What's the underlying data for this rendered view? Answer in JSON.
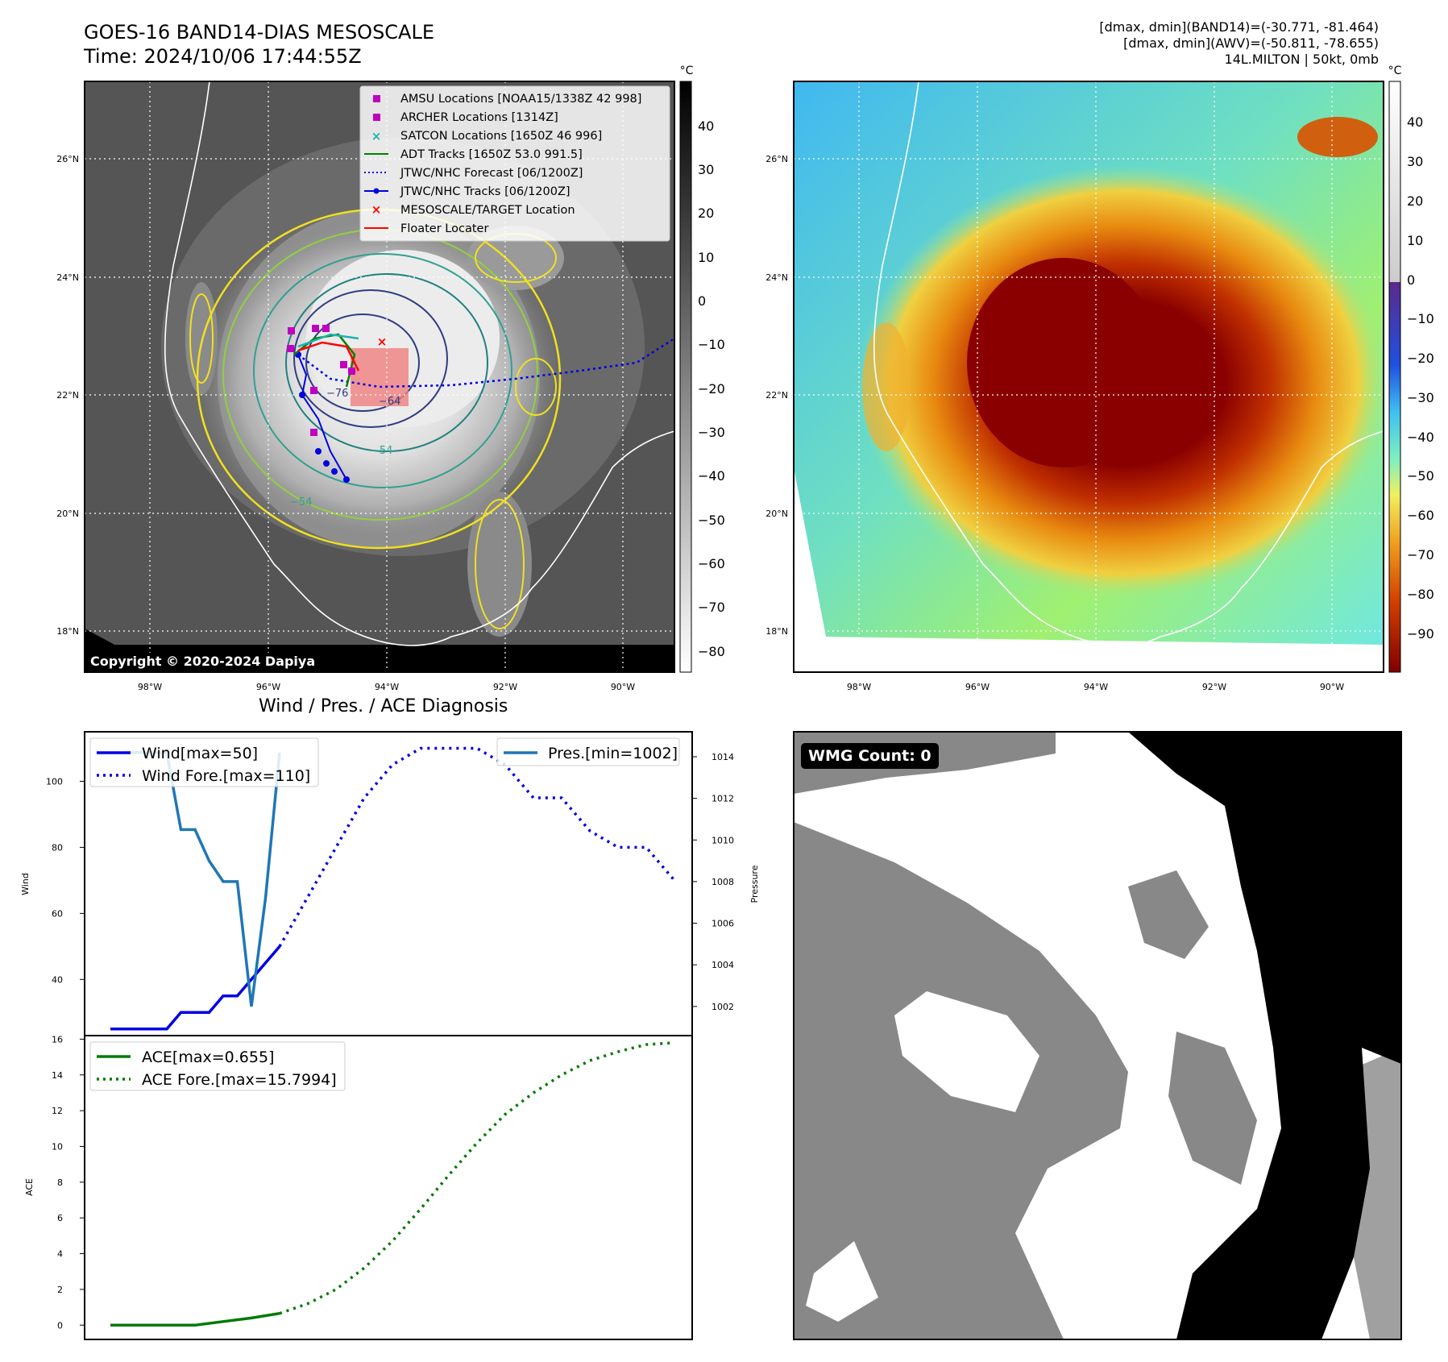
{
  "header": {
    "title_line1": "GOES-16 BAND14-DIAS MESOSCALE",
    "title_line2": "Time: 2024/10/06 17:44:55Z",
    "info_line1": "[dmax, dmin](BAND14)=(-30.771, -81.464)",
    "info_line2": "[dmax, dmin](AWV)=(-50.811, -78.655)",
    "info_line3": "14L.MILTON | 50kt, 0mb"
  },
  "maps": {
    "lat_labels": [
      "26°N",
      "24°N",
      "22°N",
      "20°N",
      "18°N"
    ],
    "lon_labels": [
      "98°W",
      "96°W",
      "94°W",
      "92°W",
      "90°W"
    ],
    "copyright": "Copyright © 2020-2024 Dapiya",
    "left_colorbar": {
      "unit": "°C",
      "ticks": [
        "40",
        "30",
        "20",
        "10",
        "0",
        "−10",
        "−20",
        "−30",
        "−40",
        "−50",
        "−60",
        "−70",
        "−80"
      ]
    },
    "right_colorbar": {
      "unit": "°C",
      "ticks": [
        "40",
        "30",
        "20",
        "10",
        "0",
        "−10",
        "−20",
        "−30",
        "−40",
        "−50",
        "−60",
        "−70",
        "−80",
        "−90"
      ]
    },
    "contour_labels": [
      "−76",
      "−64",
      "−54",
      "−54"
    ],
    "legend": [
      {
        "label": "AMSU Locations [NOAA15/1338Z 42 998]",
        "color": "#c000c0",
        "marker": "square"
      },
      {
        "label": "ARCHER Locations [1314Z]",
        "color": "#c000c0",
        "marker": "square"
      },
      {
        "label": "SATCON Locations [1650Z 46 996]",
        "color": "#20b0b0",
        "marker": "x"
      },
      {
        "label": "ADT Tracks [1650Z 53.0 991.5]",
        "color": "#008000",
        "marker": "line"
      },
      {
        "label": "JTWC/NHC Forecast [06/1200Z]",
        "color": "#0000e0",
        "marker": "dotted"
      },
      {
        "label": "JTWC/NHC Tracks [06/1200Z]",
        "color": "#0000e0",
        "marker": "line-dot"
      },
      {
        "label": "MESOSCALE/TARGET Location",
        "color": "#ff0000",
        "marker": "x"
      },
      {
        "label": "Floater Locater",
        "color": "#ff0000",
        "marker": "line"
      }
    ]
  },
  "wmg": {
    "label": "WMG Count: 0"
  },
  "chart_data": [
    {
      "type": "line",
      "title": "Wind / Pres. / ACE Diagnosis",
      "ylabel": "Wind",
      "y2label": "Pressure",
      "ylim": [
        23,
        115
      ],
      "y2lim": [
        1000.6,
        1015.2
      ],
      "yticks": [
        40,
        60,
        80,
        100
      ],
      "y2ticks": [
        1002,
        1004,
        1006,
        1008,
        1010,
        1012,
        1014
      ],
      "legend_left": [
        "Wind[max=50]",
        "Wind Fore.[max=110]"
      ],
      "legend_right": [
        "Pres.[min=1002]"
      ],
      "series": [
        {
          "name": "Wind[max=50]",
          "axis": "left",
          "style": "solid",
          "color": "#0000e6",
          "x": [
            0,
            1,
            2,
            3,
            4,
            5,
            6,
            7,
            8,
            9,
            10,
            11,
            12
          ],
          "y": [
            25,
            25,
            25,
            25,
            25,
            30,
            30,
            30,
            35,
            35,
            40,
            45,
            50
          ]
        },
        {
          "name": "Wind Fore.[max=110]",
          "axis": "left",
          "style": "dotted",
          "color": "#0000e6",
          "x": [
            12,
            14,
            16,
            18,
            20,
            22,
            24,
            26,
            28,
            30,
            32,
            34,
            36,
            38,
            40
          ],
          "y": [
            50,
            65,
            80,
            95,
            105,
            110,
            110,
            110,
            105,
            95,
            95,
            85,
            80,
            80,
            70
          ]
        },
        {
          "name": "Pres.[min=1002]",
          "axis": "right",
          "style": "solid",
          "color": "#1f77b4",
          "x": [
            1,
            2,
            3,
            4,
            5,
            6,
            7,
            8,
            9,
            10,
            11,
            12
          ],
          "y": [
            1014.2,
            1014.2,
            1014.2,
            1014.2,
            1010.5,
            1010.5,
            1009.0,
            1008.0,
            1008.0,
            1002.0,
            1007.2,
            1014.2
          ]
        }
      ]
    },
    {
      "type": "line",
      "ylabel": "ACE",
      "ylim": [
        -0.8,
        16.2
      ],
      "yticks": [
        0,
        2,
        4,
        6,
        8,
        10,
        12,
        14,
        16
      ],
      "legend": [
        "ACE[max=0.655]",
        "ACE Fore.[max=15.7994]"
      ],
      "series": [
        {
          "name": "ACE[max=0.655]",
          "style": "solid",
          "color": "#007a00",
          "x": [
            0,
            2,
            4,
            6,
            8,
            10,
            12
          ],
          "y": [
            0.0,
            0.0,
            0.0,
            0.0,
            0.2,
            0.4,
            0.655
          ]
        },
        {
          "name": "ACE Fore.[max=15.7994]",
          "style": "dotted",
          "color": "#007a00",
          "x": [
            12,
            14,
            16,
            18,
            20,
            22,
            24,
            26,
            28,
            30,
            32,
            34,
            36,
            38,
            40
          ],
          "y": [
            0.655,
            1.2,
            2.0,
            3.2,
            4.7,
            6.5,
            8.4,
            10.2,
            11.8,
            13.0,
            14.0,
            14.8,
            15.3,
            15.7,
            15.7994
          ]
        }
      ]
    }
  ]
}
